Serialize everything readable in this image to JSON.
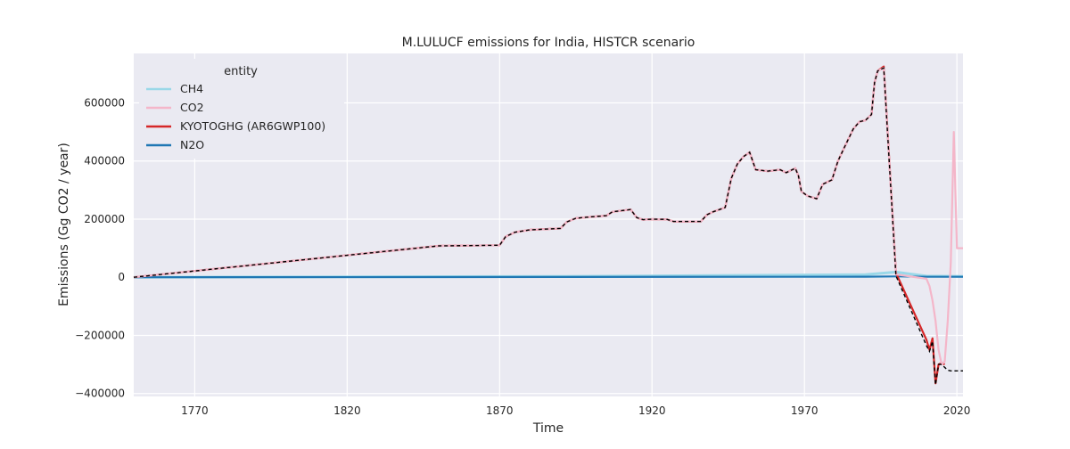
{
  "chart_data": {
    "type": "line",
    "title": "M.LULUCF emissions for India, HISTCR scenario",
    "xlabel": "Time",
    "ylabel": "Emissions (Gg CO2 / year)",
    "xlim": [
      1750,
      2022
    ],
    "ylim": [
      -410000,
      770000
    ],
    "xticks": [
      1770,
      1820,
      1870,
      1920,
      1970,
      2020
    ],
    "yticks": [
      -400000,
      -200000,
      0,
      200000,
      400000,
      600000
    ],
    "ytick_labels": [
      "−400000",
      "−200000",
      "0",
      "200000",
      "400000",
      "600000"
    ],
    "grid": true,
    "legend_title": "entity",
    "legend_position": "upper-left",
    "series": [
      {
        "name": "CH4",
        "color": "#9ad8e8",
        "x": [
          1750,
          1890,
          1990,
          2000,
          2010,
          2022
        ],
        "y": [
          0,
          3000,
          9000,
          18000,
          4000,
          3000
        ]
      },
      {
        "name": "CO2",
        "color": "#f4b6c9",
        "x": [
          1750,
          1850,
          1870,
          1872,
          1875,
          1880,
          1890,
          1892,
          1895,
          1900,
          1905,
          1907,
          1913,
          1915,
          1917,
          1920,
          1925,
          1927,
          1936,
          1938,
          1940,
          1944,
          1946,
          1948,
          1950,
          1952,
          1954,
          1958,
          1962,
          1964,
          1967,
          1968,
          1969,
          1971,
          1974,
          1976,
          1979,
          1981,
          1983,
          1986,
          1988,
          1990,
          1992,
          1993,
          1994,
          1996,
          2000,
          2010,
          2011,
          2012,
          2013,
          2014,
          2015,
          2016,
          2017,
          2018,
          2019,
          2020,
          2022
        ],
        "y": [
          0,
          108000,
          110000,
          140000,
          155000,
          163000,
          168000,
          190000,
          203000,
          208000,
          212000,
          225000,
          233000,
          205000,
          198000,
          200000,
          199000,
          192000,
          192000,
          215000,
          225000,
          240000,
          340000,
          390000,
          415000,
          430000,
          370000,
          365000,
          370000,
          360000,
          375000,
          350000,
          295000,
          280000,
          270000,
          320000,
          335000,
          400000,
          445000,
          510000,
          535000,
          540000,
          560000,
          670000,
          710000,
          720000,
          10000,
          -5000,
          -30000,
          -80000,
          -150000,
          -250000,
          -300000,
          -290000,
          -150000,
          50000,
          500000,
          100000,
          100000
        ]
      },
      {
        "name": "KYOTOGHG (AR6GWP100)",
        "color": "#d62728",
        "x": [
          1750,
          1850,
          1870,
          1872,
          1875,
          1880,
          1890,
          1892,
          1895,
          1900,
          1905,
          1907,
          1913,
          1915,
          1917,
          1920,
          1925,
          1927,
          1936,
          1938,
          1940,
          1944,
          1946,
          1948,
          1950,
          1952,
          1954,
          1958,
          1962,
          1964,
          1967,
          1968,
          1969,
          1971,
          1974,
          1976,
          1979,
          1981,
          1983,
          1986,
          1988,
          1990,
          1992,
          1993,
          1994,
          1996,
          2000,
          2010,
          2011,
          2012,
          2013,
          2014,
          2015,
          2016
        ],
        "y": [
          0,
          108000,
          110000,
          140000,
          155000,
          163000,
          168000,
          190000,
          203000,
          208000,
          212000,
          225000,
          233000,
          205000,
          198000,
          200000,
          199000,
          192000,
          192000,
          215000,
          225000,
          240000,
          340000,
          390000,
          415000,
          430000,
          370000,
          365000,
          370000,
          360000,
          375000,
          350000,
          295000,
          280000,
          270000,
          320000,
          335000,
          400000,
          445000,
          510000,
          535000,
          540000,
          560000,
          670000,
          710000,
          725000,
          15000,
          -215000,
          -250000,
          -210000,
          -365000,
          -300000,
          -295000,
          -300000
        ]
      },
      {
        "name": "N2O",
        "color": "#1f77b4",
        "x": [
          1750,
          1890,
          1990,
          2000,
          2010,
          2022
        ],
        "y": [
          0,
          1000,
          2000,
          3000,
          1500,
          1500
        ]
      }
    ],
    "reference_line": {
      "style": "dashed",
      "color": "#000000",
      "x": [
        1750,
        1850,
        1870,
        1872,
        1875,
        1880,
        1890,
        1892,
        1895,
        1900,
        1905,
        1907,
        1913,
        1915,
        1917,
        1920,
        1925,
        1927,
        1936,
        1938,
        1940,
        1944,
        1946,
        1948,
        1950,
        1952,
        1954,
        1958,
        1962,
        1964,
        1967,
        1968,
        1969,
        1971,
        1974,
        1976,
        1979,
        1981,
        1983,
        1986,
        1988,
        1990,
        1992,
        1993,
        1994,
        1996,
        2000,
        2010,
        2011,
        2012,
        2013,
        2014,
        2015,
        2016,
        2017,
        2018,
        2022
      ],
      "y": [
        0,
        108000,
        110000,
        140000,
        155000,
        163000,
        168000,
        190000,
        203000,
        208000,
        212000,
        225000,
        233000,
        205000,
        198000,
        200000,
        199000,
        192000,
        192000,
        215000,
        225000,
        240000,
        340000,
        390000,
        415000,
        430000,
        370000,
        365000,
        370000,
        360000,
        375000,
        350000,
        295000,
        280000,
        270000,
        320000,
        335000,
        400000,
        445000,
        510000,
        535000,
        540000,
        560000,
        670000,
        710000,
        720000,
        5000,
        -235000,
        -255000,
        -220000,
        -370000,
        -300000,
        -300000,
        -310000,
        -320000,
        -322000,
        -322000
      ]
    }
  }
}
